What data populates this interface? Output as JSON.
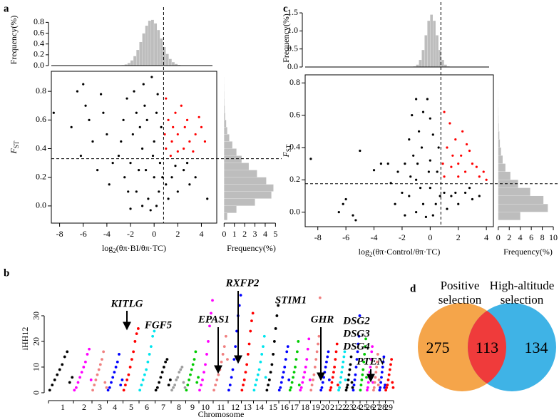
{
  "chart_data": [
    {
      "type": "scatter_marginal",
      "panel_label": "a",
      "scatter": {
        "xlabel": [
          "log",
          "2",
          "(θπ·BI/θπ·TC)"
        ],
        "ylabel": [
          "F",
          "ST"
        ],
        "x": [
          -2.5,
          -2,
          -1.5,
          -1,
          -0.5,
          0,
          0.5,
          -2.8,
          -1.8,
          -1.2,
          -0.6,
          0,
          0.4,
          -0.3,
          -1,
          -2.2,
          -3,
          -2.6,
          -1.5,
          -0.8,
          0.2,
          0.6,
          1.5,
          2,
          2.5,
          3,
          1.2,
          2.8,
          3.5,
          1.8,
          -3.5,
          -4,
          -3.8,
          -1.7,
          -0.9,
          -2.3,
          0.3,
          -0.2,
          -1.3,
          -0.1,
          0.7,
          -0.7,
          1,
          0.2,
          -2,
          -8.5,
          -6.5,
          -6,
          -5.5,
          -5.8,
          -7,
          -4.5,
          -6.2,
          -4.8,
          -5.2,
          4.5,
          -4.3,
          1,
          1.5,
          2,
          2.5,
          3,
          3.5,
          4,
          1.2,
          1.8,
          2.3,
          1,
          2.8,
          3.3,
          4.3,
          1.4,
          2,
          0.9,
          1.6,
          2.6,
          3.8
        ],
        "y": [
          0.2,
          0.3,
          0.1,
          0.4,
          0.05,
          0.2,
          0.3,
          0.45,
          0.5,
          0.55,
          0.6,
          0.45,
          0.1,
          -0.03,
          0,
          0.1,
          0.35,
          0.6,
          0.65,
          0.7,
          0.65,
          0.55,
          0.2,
          0.1,
          0.25,
          0.15,
          0.05,
          0.3,
          0.2,
          0.28,
          0.3,
          0.5,
          0.15,
          0.8,
          0.85,
          0.75,
          0.78,
          0.9,
          0.25,
          0.35,
          0.2,
          0.25,
          0.15,
          0,
          -0.02,
          0.65,
          0.8,
          0.85,
          0.6,
          0.7,
          0.55,
          0.78,
          0.35,
          0.25,
          0.45,
          0.05,
          0.65,
          0.4,
          0.45,
          0.5,
          0.4,
          0.45,
          0.5,
          0.55,
          0.6,
          0.65,
          0.7,
          0.75,
          0.6,
          0.38,
          0.45,
          0.35,
          0.38,
          0.5,
          0.55,
          0.55,
          0.62
        ],
        "xlim": [
          -8.7,
          5.3
        ],
        "ylim": [
          -0.12,
          0.94
        ],
        "xticks": [
          -8,
          -6,
          -4,
          -2,
          0,
          2,
          4
        ],
        "yticks": [
          {
            "value": 0,
            "label": "0.0"
          },
          0.2,
          0.4,
          0.6,
          0.8
        ],
        "thresholds": {
          "x": 0.8,
          "y": 0.33
        },
        "colors": {
          "below": "#000000",
          "above": "#ff0000"
        }
      },
      "top_hist": {
        "ylabel": "Frequency(%)",
        "bins": [
          -3,
          -2.75,
          -2.5,
          -2.25,
          -2,
          -1.75,
          -1.5,
          -1.25,
          -1,
          -0.75,
          -0.5,
          -0.25,
          0,
          0.25,
          0.5,
          0.75,
          1,
          1.25,
          1.5,
          1.75,
          2,
          2.25,
          2.5,
          2.75,
          3
        ],
        "counts": [
          0.003,
          0.009,
          0.021,
          0.047,
          0.095,
          0.174,
          0.289,
          0.436,
          0.595,
          0.738,
          0.83,
          0.846,
          0.78,
          0.657,
          0.5,
          0.344,
          0.215,
          0.122,
          0.063,
          0.029,
          0.012,
          0.005,
          0.002,
          0.001
        ],
        "ylim": [
          0,
          0.95
        ],
        "yticks": [
          {
            "value": 0,
            "label": "0.0"
          },
          0.2,
          0.4,
          0.6,
          0.8
        ],
        "color": "#bdbdbd"
      },
      "right_hist": {
        "xlabel": "Frequency(%)",
        "bins": [
          -0.1,
          -0.05,
          0,
          0.05,
          0.1,
          0.15,
          0.2,
          0.25,
          0.3,
          0.35,
          0.4,
          0.45,
          0.5,
          0.55,
          0.6,
          0.65,
          0.7,
          0.75,
          0.8,
          0.85,
          0.9
        ],
        "counts": [
          0.3,
          1.2,
          3.0,
          4.6,
          4.8,
          4.1,
          3.2,
          2.4,
          1.7,
          1.2,
          0.8,
          0.5,
          0.3,
          0.2,
          0.1,
          0.06,
          0.03,
          0.02,
          0.01,
          0.005
        ],
        "xlim": [
          -0.3,
          5.6
        ],
        "xticks": [
          0,
          1,
          2,
          3,
          4,
          5
        ],
        "color": "#bdbdbd"
      }
    },
    {
      "type": "scatter_marginal",
      "panel_label": "c",
      "scatter": {
        "xlabel": [
          "log",
          "2",
          "(θπ·Control/θπ·TC)"
        ],
        "ylabel": [
          "F",
          "ST"
        ],
        "x": [
          -1.5,
          -1,
          -0.5,
          0,
          0.5,
          -1.8,
          -1.2,
          -0.6,
          0,
          0.4,
          -0.3,
          -1,
          -2,
          -2.3,
          -1.5,
          -0.8,
          0.2,
          0.6,
          1.5,
          2,
          2.5,
          3,
          1.2,
          2.8,
          3.5,
          1.8,
          -2.8,
          -3,
          -2.5,
          -1.3,
          -0.5,
          -1,
          0,
          -0.2,
          -0.7,
          -0.1,
          0.7,
          -1.4,
          1,
          0.2,
          -1.8,
          -0.9,
          -8.5,
          -6,
          -5.5,
          -6.5,
          -5.3,
          -5,
          -4,
          -3.5,
          -6.2,
          1,
          1.5,
          2,
          2.5,
          3,
          3.5,
          4,
          1.2,
          1.8,
          2.3,
          1,
          2.8,
          3.3,
          1.4,
          2,
          0.9,
          1.6,
          2.6,
          3.8,
          2.2
        ],
        "y": [
          0.1,
          0.2,
          0.05,
          0.15,
          0.25,
          0.3,
          0.35,
          0.4,
          0.32,
          0.05,
          -0.03,
          0,
          0.12,
          0.25,
          0.45,
          0.5,
          0.48,
          0.4,
          0.1,
          0.05,
          0.12,
          0.08,
          0.02,
          0.15,
          0.1,
          0.12,
          0.18,
          0.3,
          0.05,
          0.6,
          0.62,
          0.7,
          0.58,
          0.7,
          0.15,
          0.25,
          0.1,
          0.22,
          0.12,
          -0.02,
          -0.02,
          0.3,
          0.33,
          0.08,
          -0.02,
          0,
          -0.05,
          0.38,
          0.26,
          0.3,
          0.05,
          0.22,
          0.28,
          0.3,
          0.25,
          0.3,
          0.22,
          0.2,
          0.4,
          0.45,
          0.5,
          0.62,
          0.38,
          0.28,
          0.55,
          0.22,
          0.3,
          0.35,
          0.42,
          0.25,
          0.35
        ],
        "xlim": [
          -8.9,
          4.5
        ],
        "ylim": [
          -0.09,
          0.85
        ],
        "xticks": [
          -8,
          -6,
          -4,
          -2,
          0,
          2,
          4
        ],
        "yticks": [
          {
            "value": 0,
            "label": "0.0"
          },
          0.2,
          0.4,
          0.6,
          0.8
        ],
        "thresholds": {
          "x": 0.76,
          "y": 0.176
        },
        "colors": {
          "below": "#000000",
          "above": "#ff0000"
        }
      },
      "top_hist": {
        "ylabel": "Frequency(%)",
        "bins": [
          -2,
          -1.8,
          -1.6,
          -1.4,
          -1.2,
          -1,
          -0.8,
          -0.6,
          -0.4,
          -0.2,
          0,
          0.2,
          0.4,
          0.6,
          0.8,
          1,
          1.2,
          1.4,
          1.6,
          1.8,
          2
        ],
        "counts": [
          0,
          0,
          0.001,
          0.003,
          0.016,
          0.064,
          0.196,
          0.471,
          0.879,
          1.28,
          1.45,
          1.28,
          0.879,
          0.471,
          0.196,
          0.064,
          0.016,
          0.003,
          0.001,
          0
        ],
        "ylim": [
          0,
          1.6
        ],
        "yticks": [
          {
            "value": 0,
            "label": "0.0"
          },
          0.5,
          {
            "value": 1,
            "label": "1.0"
          },
          1.5
        ],
        "color": "#bdbdbd"
      },
      "right_hist": {
        "xlabel": "Frequency(%)",
        "bins": [
          -0.05,
          0,
          0.05,
          0.1,
          0.15,
          0.2,
          0.25,
          0.3,
          0.35,
          0.4,
          0.45,
          0.5,
          0.55,
          0.6,
          0.65,
          0.7,
          0.75,
          0.8
        ],
        "counts": [
          4.0,
          9.0,
          8.2,
          5.8,
          3.6,
          2.2,
          1.3,
          0.8,
          0.5,
          0.3,
          0.2,
          0.1,
          0.06,
          0.04,
          0.02,
          0.01,
          0.005
        ],
        "xlim": [
          -0.1,
          10.9
        ],
        "xticks": [
          0,
          2,
          4,
          6,
          8,
          10
        ],
        "color": "#bdbdbd"
      }
    },
    {
      "type": "manhattan",
      "panel_label": "b",
      "ylabel": "iHH12",
      "xlabel": "Chromosome",
      "categories": [
        "1",
        "2",
        "3",
        "4",
        "5",
        "6",
        "7",
        "8",
        "9",
        "10",
        "11",
        "12",
        "13",
        "14",
        "15",
        "16",
        "17",
        "18",
        "19",
        "20",
        "21",
        "22",
        "23",
        "24",
        "25",
        "26",
        "27",
        "28",
        "29"
      ],
      "colors": [
        "#000000",
        "#ff00ff",
        "#f08080",
        "#0000ff",
        "#ff0000",
        "#00e5ee",
        "#000000",
        "#9e9e9e",
        "#00cc00",
        "#ff00ff",
        "#f08080",
        "#0000ff",
        "#ff0000",
        "#00e5ee",
        "#000000",
        "#0000ff",
        "#00cc00",
        "#ff00ff",
        "#f08080",
        "#0000ff",
        "#ff0000",
        "#00e5ee",
        "#000000",
        "#0000ff",
        "#00cc00",
        "#ff00ff",
        "#f08080",
        "#0000ff",
        "#ff0000"
      ],
      "values": [
        [
          1,
          3,
          5,
          7,
          9,
          11,
          14,
          16,
          4,
          6
        ],
        [
          1,
          2,
          4,
          6,
          8,
          10,
          12,
          15,
          17,
          5
        ],
        [
          1,
          3,
          5,
          7,
          9,
          11,
          13,
          16,
          4,
          2
        ],
        [
          1,
          2,
          4,
          6,
          8,
          10,
          12,
          15,
          3,
          5
        ],
        [
          1,
          3,
          5,
          7,
          10,
          13,
          16,
          20,
          23,
          25
        ],
        [
          1,
          3,
          5,
          7,
          9,
          12,
          15,
          18,
          22,
          24
        ],
        [
          1,
          2,
          4,
          6,
          8,
          10,
          12,
          13,
          3,
          5
        ],
        [
          1,
          2,
          3,
          5,
          6,
          8,
          9,
          10,
          4,
          2
        ],
        [
          1,
          3,
          5,
          7,
          9,
          11,
          13,
          16,
          4,
          6
        ],
        [
          1,
          3,
          5,
          8,
          11,
          15,
          20,
          26,
          31,
          36
        ],
        [
          1,
          3,
          5,
          7,
          9,
          12,
          15,
          18,
          22,
          13
        ],
        [
          1,
          3,
          6,
          9,
          13,
          18,
          24,
          30,
          34,
          38
        ],
        [
          1,
          3,
          5,
          8,
          11,
          15,
          19,
          24,
          28,
          31
        ],
        [
          1,
          3,
          5,
          7,
          9,
          12,
          15,
          18,
          22,
          6
        ],
        [
          1,
          3,
          5,
          8,
          11,
          15,
          20,
          25,
          30,
          34
        ],
        [
          1,
          2,
          4,
          6,
          8,
          10,
          13,
          16,
          18,
          5
        ],
        [
          1,
          2,
          4,
          6,
          8,
          10,
          13,
          16,
          20,
          3
        ],
        [
          1,
          2,
          4,
          6,
          8,
          10,
          13,
          17,
          21,
          5
        ],
        [
          1,
          3,
          5,
          7,
          10,
          13,
          16,
          19,
          22,
          37
        ],
        [
          1,
          2,
          4,
          6,
          8,
          10,
          12,
          14,
          16,
          5
        ],
        [
          1,
          2,
          4,
          6,
          8,
          10,
          13,
          16,
          19,
          3
        ],
        [
          1,
          2,
          4,
          6,
          8,
          10,
          12,
          14,
          16,
          5
        ],
        [
          1,
          2,
          3,
          5,
          7,
          9,
          11,
          14,
          4,
          2
        ],
        [
          1,
          3,
          5,
          7,
          10,
          13,
          16,
          19,
          22,
          30
        ],
        [
          1,
          3,
          5,
          7,
          9,
          12,
          15,
          18,
          21,
          6
        ],
        [
          1,
          2,
          4,
          6,
          8,
          10,
          13,
          16,
          18,
          4
        ],
        [
          1,
          2,
          4,
          6,
          8,
          10,
          12,
          15,
          3,
          5
        ],
        [
          1,
          2,
          4,
          6,
          8,
          10,
          12,
          14,
          2,
          3
        ],
        [
          1,
          2,
          3,
          5,
          7,
          9,
          11,
          13,
          4,
          2
        ]
      ],
      "ylim": [
        -1.4,
        43.6
      ],
      "yticks": [
        0,
        10,
        20,
        30
      ],
      "annotations": [
        "KITLG",
        "FGF5",
        "EPAS1",
        "RXFP2",
        "STIM1",
        "GHR",
        "DSG2",
        "DSG3",
        "DSG4",
        "PTEN"
      ]
    },
    {
      "type": "venn",
      "panel_label": "d",
      "sets": [
        {
          "label": [
            "Positive",
            "selection"
          ],
          "color": "#f5a54a",
          "count": 275
        },
        {
          "label": [
            "High-altitude",
            "selection"
          ],
          "color": "#3fb3e6",
          "count": 134
        }
      ],
      "intersection": {
        "count": 113,
        "color": "#ef3b3b"
      }
    }
  ]
}
